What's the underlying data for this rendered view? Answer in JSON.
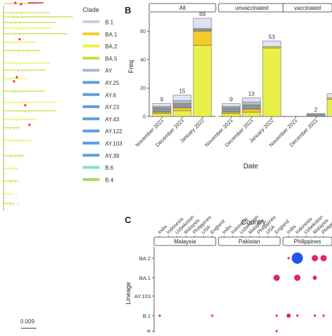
{
  "figure": {
    "panel_labels": {
      "B": "B",
      "C": "C"
    },
    "scale_bar_label": "0.009"
  },
  "legend": {
    "title": "Clade",
    "items": [
      {
        "label": "B.1",
        "color": "#c8cde6"
      },
      {
        "label": "BA.1",
        "color": "#f2cd2a"
      },
      {
        "label": "BA.2",
        "color": "#e9f04a"
      },
      {
        "label": "BA.5",
        "color": "#c7dd3c"
      },
      {
        "label": "AY",
        "color": "#a9b6dc"
      },
      {
        "label": "AY.25",
        "color": "#5b9fe0"
      },
      {
        "label": "AY.6",
        "color": "#5b9fe0"
      },
      {
        "label": "AY.23",
        "color": "#5b9fe0"
      },
      {
        "label": "AY.43",
        "color": "#5b9fe0"
      },
      {
        "label": "AY.122",
        "color": "#5b9fe0"
      },
      {
        "label": "AY.103",
        "color": "#5b9fe0"
      },
      {
        "label": "AY.39",
        "color": "#5b9fe0"
      },
      {
        "label": "B.6",
        "color": "#7fe0c8"
      },
      {
        "label": "B.4",
        "color": "#9bdc6a"
      }
    ]
  },
  "chart_data": [
    {
      "type": "bar",
      "panel": "B",
      "xlabel": "Date",
      "ylabel": "Freq",
      "ylim": [
        0,
        70
      ],
      "yticks": [
        0,
        20,
        40,
        60
      ],
      "categories": [
        "November 2021",
        "December 2021",
        "January 2022"
      ],
      "facets": [
        "All",
        "unvaccinated",
        "vaccinated"
      ],
      "segment_colors": {
        "BA.2": "#e9f04a",
        "BA.1": "#f2cd2a",
        "Other": "#8c969a",
        "Gray": "#b3bcc2",
        "Light": "#dfe3f1"
      },
      "series_data": [
        {
          "facet": "All",
          "stacks": [
            {
              "total": 9,
              "segments": {
                "BA.2": 2,
                "BA.1": 1,
                "Other": 3,
                "Gray": 1,
                "Light": 2
              }
            },
            {
              "total": 15,
              "segments": {
                "BA.2": 4,
                "BA.1": 2,
                "Other": 3,
                "Gray": 2,
                "Light": 4
              }
            },
            {
              "total": 69,
              "segments": {
                "BA.2": 50,
                "BA.1": 10,
                "Other": 1,
                "Gray": 1,
                "Light": 7
              }
            }
          ]
        },
        {
          "facet": "unvaccinated",
          "stacks": [
            {
              "total": 9,
              "segments": {
                "BA.2": 2,
                "BA.1": 1,
                "Other": 3,
                "Gray": 1,
                "Light": 2
              }
            },
            {
              "total": 13,
              "segments": {
                "BA.2": 3,
                "BA.1": 2,
                "Other": 3,
                "Gray": 2,
                "Light": 3
              }
            },
            {
              "total": 53,
              "segments": {
                "BA.2": 48,
                "BA.1": 1,
                "Other": 0,
                "Gray": 0,
                "Light": 4
              }
            }
          ]
        },
        {
          "facet": "vaccinated",
          "stacks": [
            {
              "total": 0,
              "segments": {}
            },
            {
              "total": 2,
              "segments": {
                "BA.2": 0,
                "BA.1": 0,
                "Other": 2,
                "Gray": 0,
                "Light": 0
              }
            },
            {
              "total": 16,
              "segments": {
                "BA.2": 12,
                "BA.1": 1,
                "Other": 0,
                "Gray": 0,
                "Light": 3
              }
            }
          ]
        }
      ],
      "count_labels": [
        {
          "facet": "All",
          "category": "November 2021",
          "text": "9"
        },
        {
          "facet": "All",
          "category": "December 2021",
          "text": "15"
        },
        {
          "facet": "All",
          "category": "January 2022",
          "text": "69"
        },
        {
          "facet": "unvaccinated",
          "category": "November 2021",
          "text": "9"
        },
        {
          "facet": "unvaccinated",
          "category": "December 2021",
          "text": "13"
        },
        {
          "facet": "unvaccinated",
          "category": "January 2022",
          "text": "53"
        },
        {
          "facet": "vaccinated",
          "category": "December 2021",
          "text": "2"
        }
      ]
    },
    {
      "type": "scatter",
      "panel": "C",
      "title": "Country",
      "ylabel": "Lineage",
      "x_categories": [
        "India",
        "Indonesia",
        "Uzbekistan",
        "Malaysia",
        "Philippines",
        "USA",
        "England"
      ],
      "y_categories": [
        "BA.2",
        "BA.1",
        "AY.103",
        "B.1",
        "B"
      ],
      "facets": [
        "Malaysia",
        "Pakistan",
        "Philippines"
      ],
      "colors": {
        "small": "#e8245a",
        "large": "#2155e8"
      },
      "points": [
        {
          "facet": "Malaysia",
          "country": "India",
          "lineage": "B.1",
          "size": 1
        },
        {
          "facet": "Malaysia",
          "country": "England",
          "lineage": "B.1",
          "size": 1
        },
        {
          "facet": "Pakistan",
          "country": "England",
          "lineage": "BA.1",
          "size": 3
        },
        {
          "facet": "Pakistan",
          "country": "England",
          "lineage": "B.1",
          "size": 1
        },
        {
          "facet": "Pakistan",
          "country": "England",
          "lineage": "B",
          "size": 1
        },
        {
          "facet": "Philippines",
          "country": "India",
          "lineage": "BA.2",
          "size": 1
        },
        {
          "facet": "Philippines",
          "country": "Indonesia",
          "lineage": "BA.2",
          "size": 10
        },
        {
          "facet": "Philippines",
          "country": "Indonesia",
          "lineage": "BA.1",
          "size": 3
        },
        {
          "facet": "Philippines",
          "country": "India",
          "lineage": "B.1",
          "size": 2
        },
        {
          "facet": "Philippines",
          "country": "Indonesia",
          "lineage": "B.1",
          "size": 1
        },
        {
          "facet": "Philippines",
          "country": "Malaysia",
          "lineage": "BA.2",
          "size": 3
        },
        {
          "facet": "Philippines",
          "country": "Malaysia",
          "lineage": "BA.1",
          "size": 2
        },
        {
          "facet": "Philippines",
          "country": "Philippines",
          "lineage": "BA.2",
          "size": 3
        },
        {
          "facet": "Philippines",
          "country": "Malaysia",
          "lineage": "B.1",
          "size": 1
        },
        {
          "facet": "Philippines",
          "country": "Philippines",
          "lineage": "B.1",
          "size": 1
        }
      ]
    }
  ]
}
